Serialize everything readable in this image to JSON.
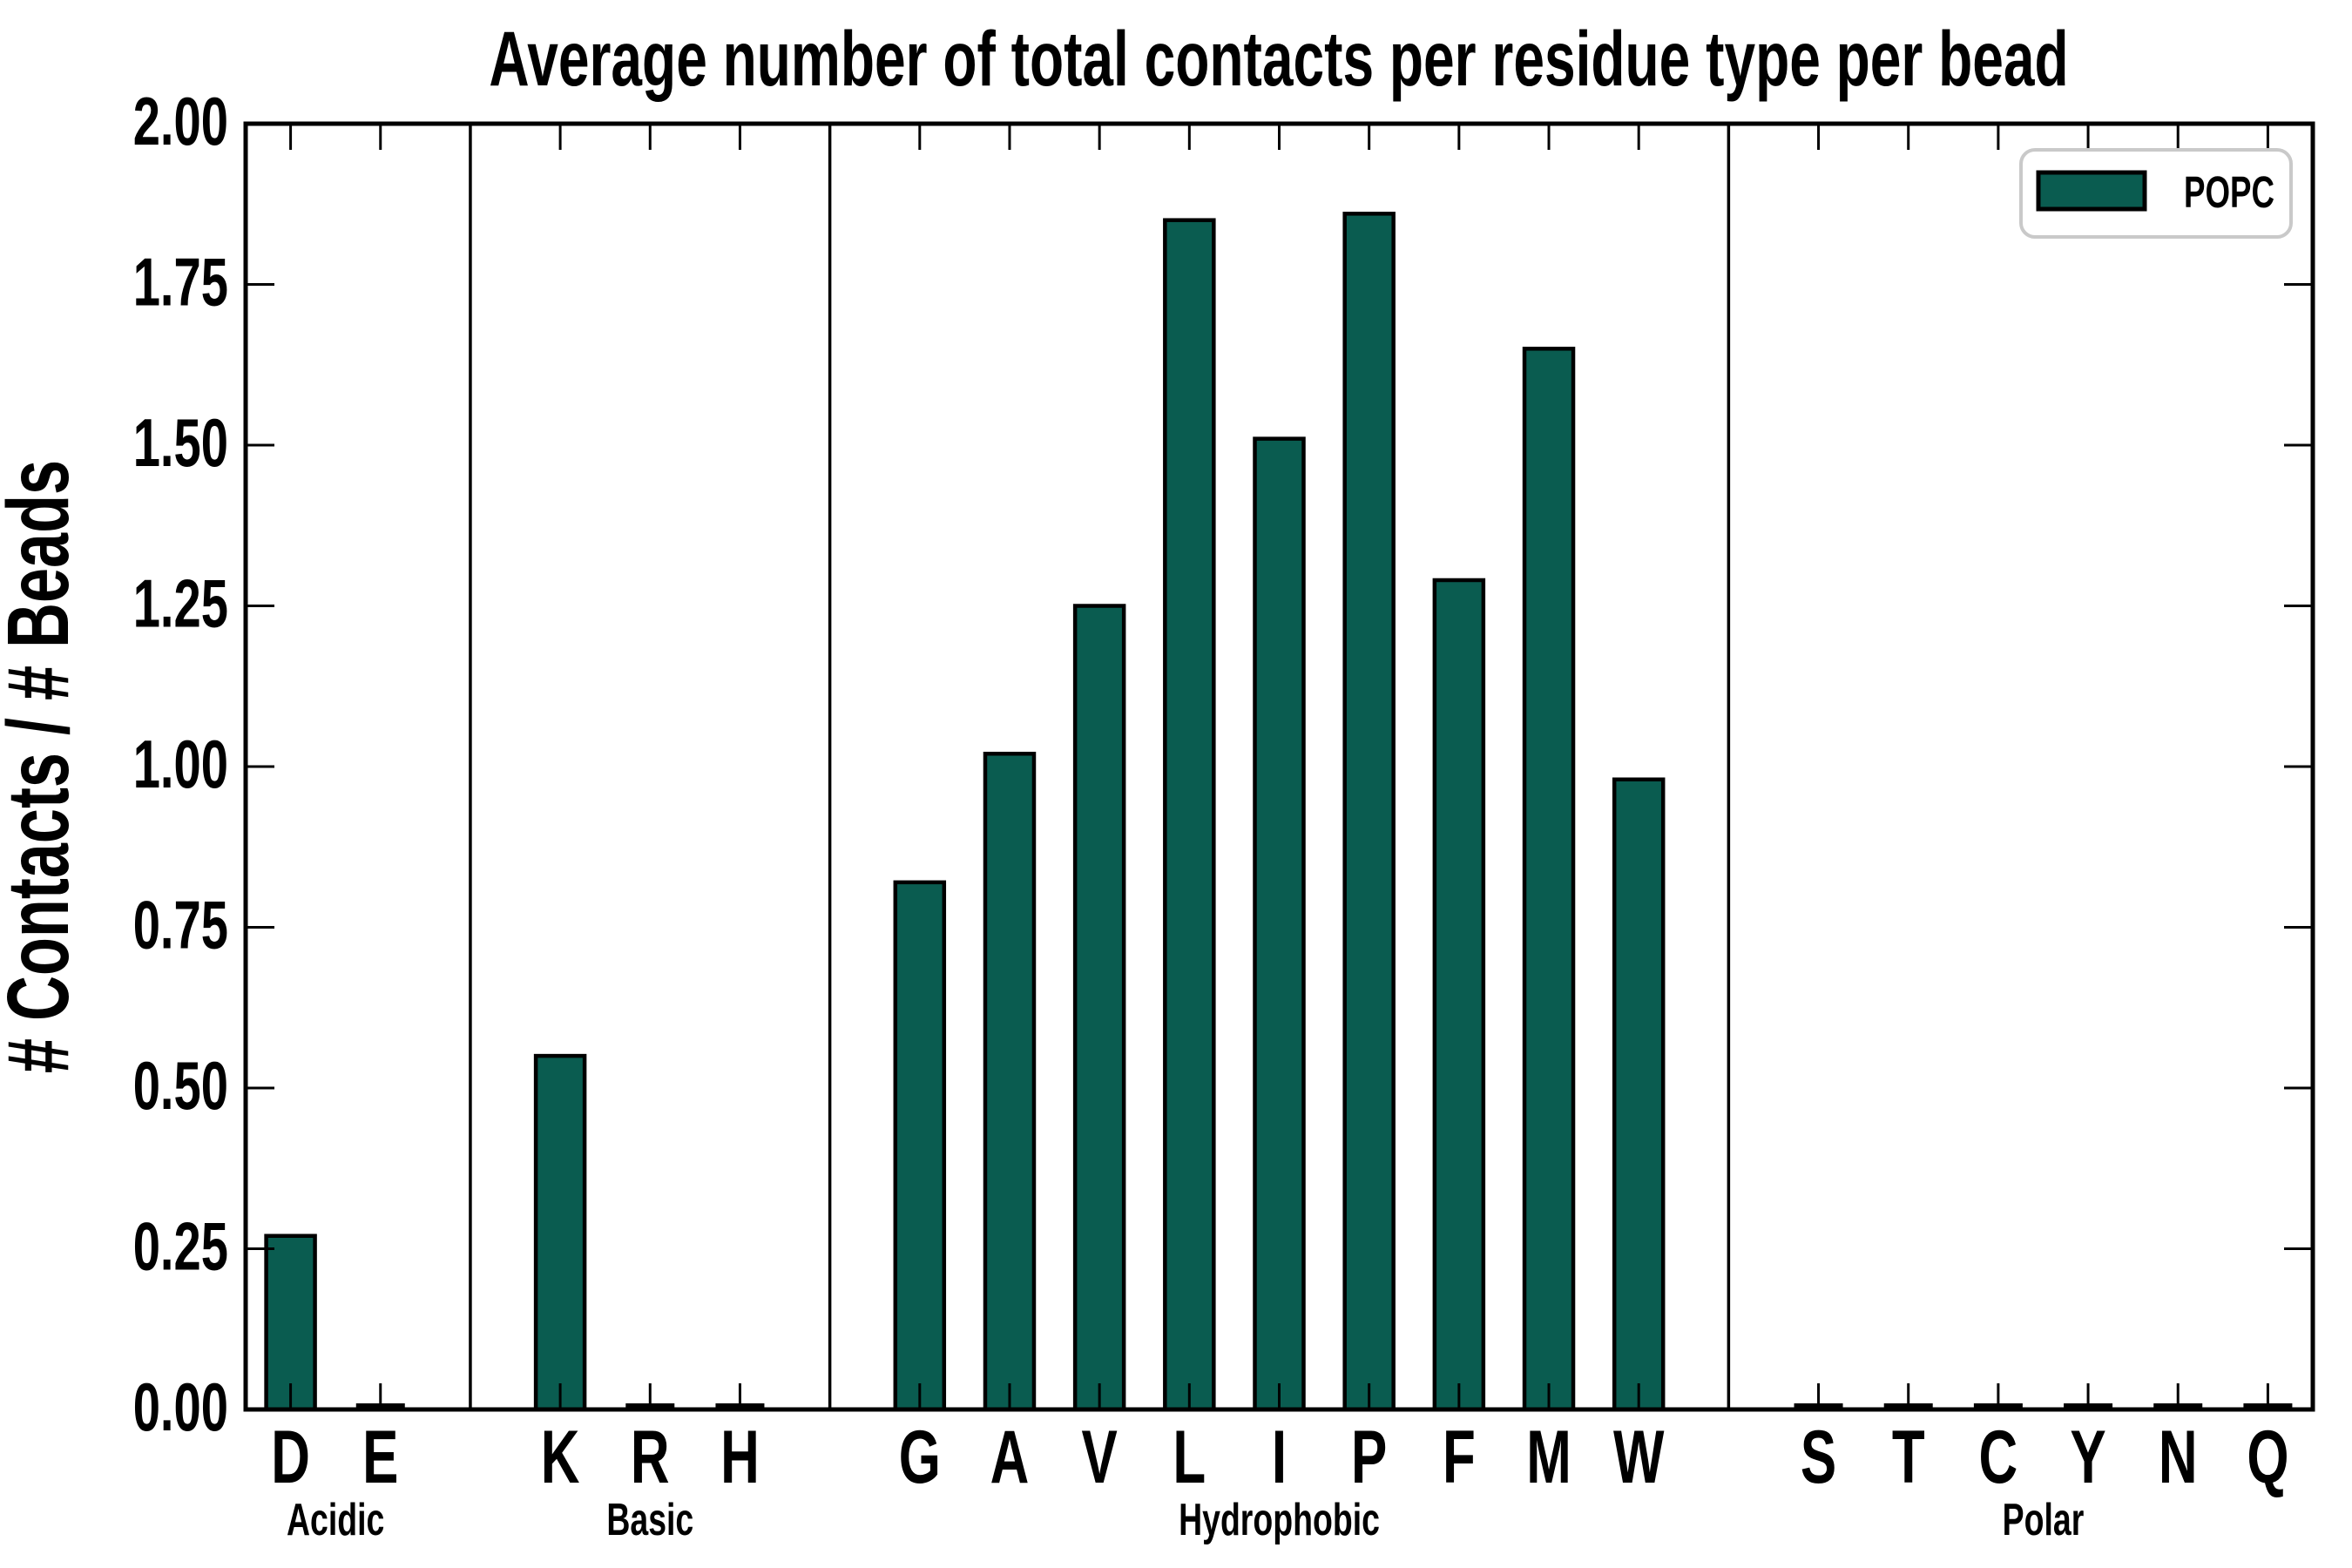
{
  "figure": {
    "background": "#ffffff"
  },
  "chart_data": {
    "type": "bar",
    "title": "Average number of total contacts per residue type per bead",
    "xlabel": "",
    "ylabel": "# Contacts / # Beads",
    "ylim": [
      0.0,
      2.0
    ],
    "ytick_step": 0.25,
    "ytick_labels": [
      "0.00",
      "0.25",
      "0.50",
      "0.75",
      "1.00",
      "1.25",
      "1.50",
      "1.75",
      "2.00"
    ],
    "grid": false,
    "legend_position": "upper right",
    "legend": [
      {
        "name": "POPC",
        "color": "#0a5c50"
      }
    ],
    "groups": [
      {
        "label": "Acidic",
        "categories": [
          "D",
          "E"
        ],
        "values": [
          0.27,
          0.0
        ]
      },
      {
        "label": "Basic",
        "categories": [
          "K",
          "R",
          "H"
        ],
        "values": [
          0.55,
          0.0,
          0.0
        ]
      },
      {
        "label": "Hydrophobic",
        "categories": [
          "G",
          "A",
          "V",
          "L",
          "I",
          "P",
          "F",
          "M",
          "W"
        ],
        "values": [
          0.82,
          1.02,
          1.25,
          1.85,
          1.51,
          1.86,
          1.29,
          1.65,
          0.98
        ]
      },
      {
        "label": "Polar",
        "categories": [
          "S",
          "T",
          "C",
          "Y",
          "N",
          "Q"
        ],
        "values": [
          0.0,
          0.0,
          0.0,
          0.0,
          0.0,
          0.0
        ]
      }
    ]
  },
  "colors": {
    "bar_fill": "#0a5c50",
    "bar_edge": "#000000",
    "axis": "#000000",
    "legend_border": "#c9c9c9",
    "background": "#ffffff"
  }
}
